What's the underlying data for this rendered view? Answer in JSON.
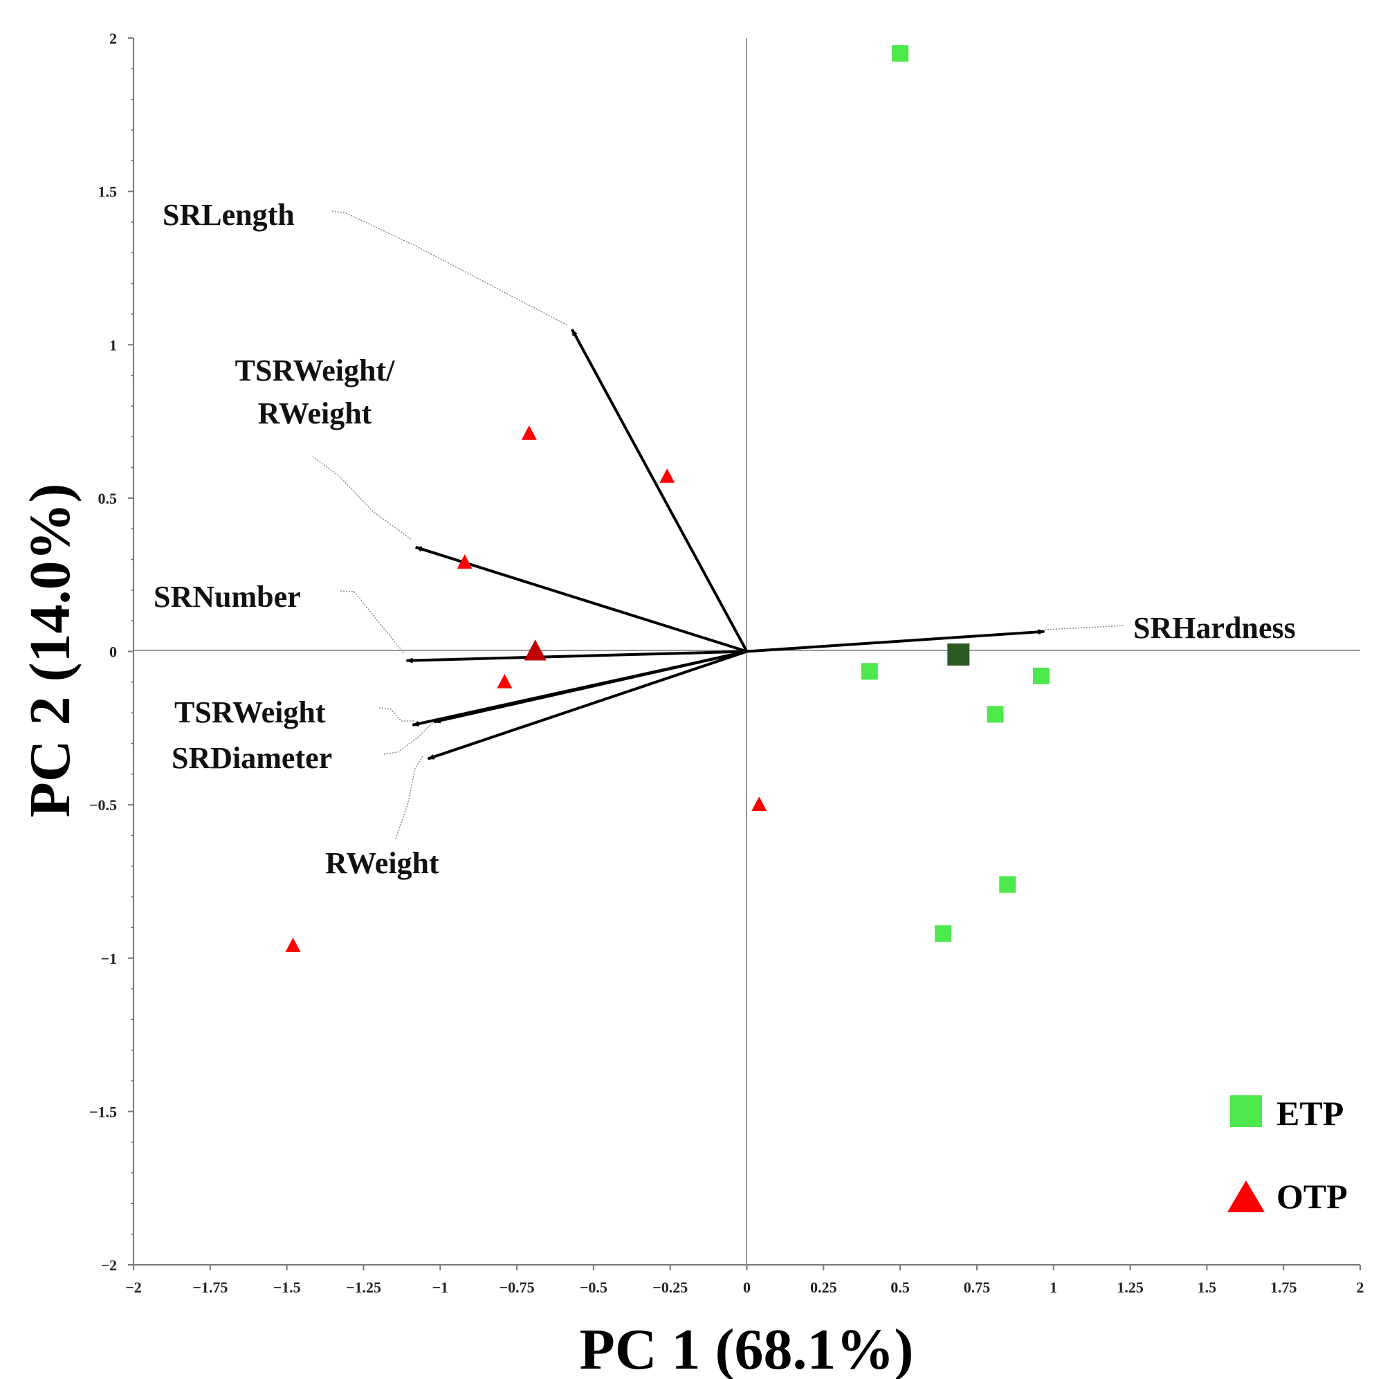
{
  "chart_data": {
    "type": "scatter",
    "title": "",
    "xlabel": "PC 1 (68.1%)",
    "ylabel": "PC 2 (14.0%)",
    "xlim": [
      -2,
      2
    ],
    "ylim": [
      -2,
      2
    ],
    "x_ticks": [
      -2,
      -1.75,
      -1.5,
      -1.25,
      -1,
      -0.75,
      -0.5,
      -0.25,
      0,
      0.25,
      0.5,
      0.75,
      1,
      1.25,
      1.5,
      1.75,
      2
    ],
    "x_tick_labels": [
      "−2",
      "−1.75",
      "−1.5",
      "−1.25",
      "−1",
      "−0.75",
      "−0.5",
      "−0.25",
      "0",
      "0.25",
      "0.5",
      "0.75",
      "1",
      "1.25",
      "1.5",
      "1.75",
      "2"
    ],
    "y_ticks": [
      2,
      1.5,
      1,
      0.5,
      0,
      -0.5,
      -1,
      -1.5,
      -2
    ],
    "y_tick_labels": [
      "2",
      "1.5",
      "1",
      "0.5",
      "0",
      "−0.5",
      "−1",
      "−1.5",
      "−2"
    ],
    "series": [
      {
        "name": "ETP",
        "marker": "square",
        "color": "#4CE84C",
        "points": [
          {
            "x": 0.5,
            "y": 1.95
          },
          {
            "x": 0.4,
            "y": -0.065
          },
          {
            "x": 0.96,
            "y": -0.08
          },
          {
            "x": 0.81,
            "y": -0.205
          },
          {
            "x": 0.85,
            "y": -0.76
          },
          {
            "x": 0.64,
            "y": -0.92
          }
        ],
        "centroid": {
          "x": 0.69,
          "y": -0.01,
          "color": "#2D5A22"
        }
      },
      {
        "name": "OTP",
        "marker": "triangle",
        "color": "#FF0000",
        "points": [
          {
            "x": -0.71,
            "y": 0.71
          },
          {
            "x": -0.26,
            "y": 0.57
          },
          {
            "x": -0.92,
            "y": 0.29
          },
          {
            "x": -0.79,
            "y": -0.1
          },
          {
            "x": 0.04,
            "y": -0.5
          },
          {
            "x": -1.48,
            "y": -0.96
          }
        ],
        "centroid": {
          "x": -0.69,
          "y": 0.0,
          "color": "#C00000"
        }
      }
    ],
    "loadings": [
      {
        "name": "SRLength",
        "label": [
          "SRLength"
        ],
        "x": -0.57,
        "y": 1.05
      },
      {
        "name": "TSRWeight/RWeight",
        "label": [
          "TSRWeight/",
          "RWeight"
        ],
        "x": -1.08,
        "y": 0.34
      },
      {
        "name": "SRNumber",
        "label": [
          "SRNumber"
        ],
        "x": -1.11,
        "y": -0.03
      },
      {
        "name": "TSRWeight",
        "label": [
          "TSRWeight"
        ],
        "x": -1.09,
        "y": -0.24
      },
      {
        "name": "SRDiameter",
        "label": [
          "SRDiameter"
        ],
        "x": -1.02,
        "y": -0.23
      },
      {
        "name": "RWeight",
        "label": [
          "RWeight"
        ],
        "x": -1.04,
        "y": -0.35
      },
      {
        "name": "SRHardness",
        "label": [
          "SRHardness"
        ],
        "x": 0.97,
        "y": 0.065
      }
    ],
    "legend": {
      "position": "bottom-right",
      "entries": [
        "ETP",
        "OTP"
      ]
    }
  }
}
